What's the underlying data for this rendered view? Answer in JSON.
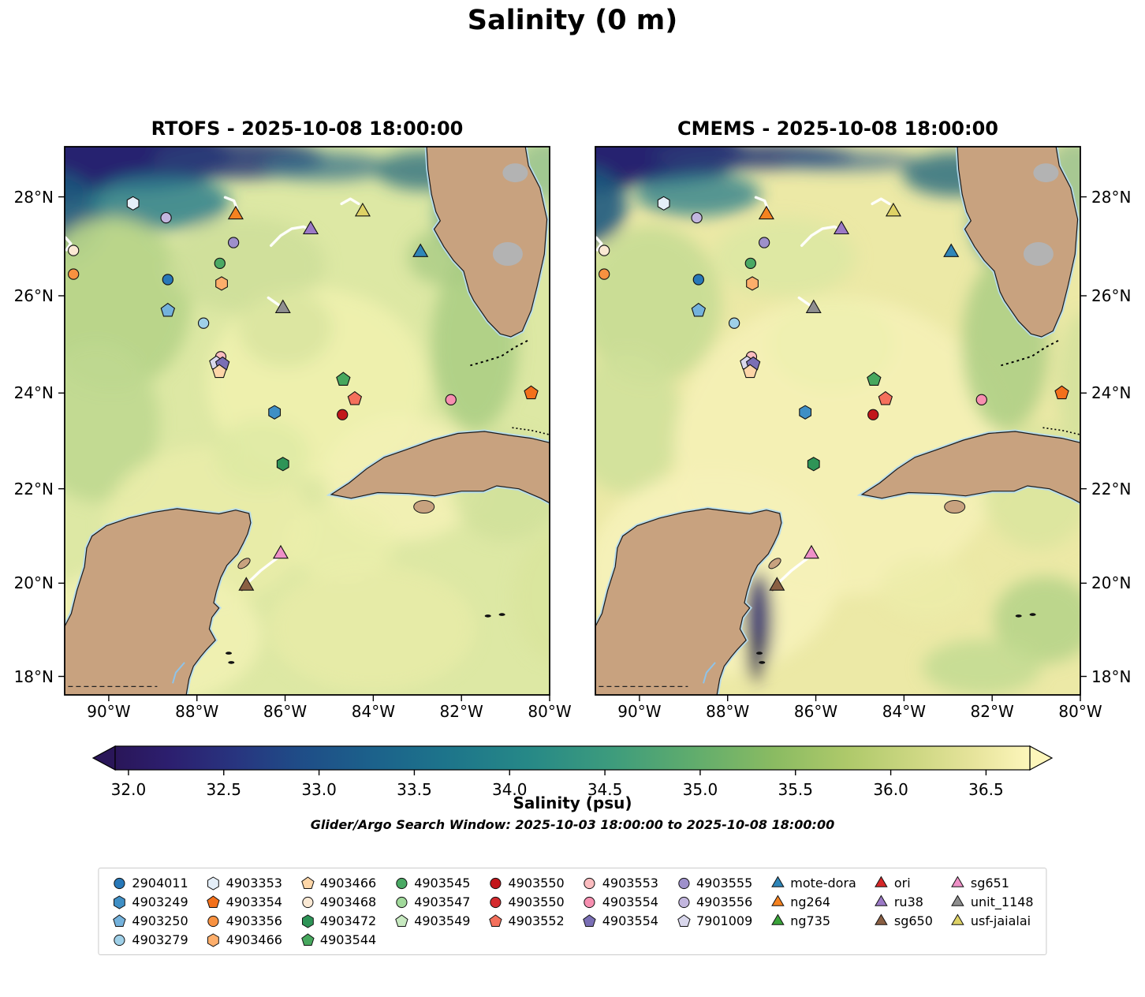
{
  "figure": {
    "title": "Salinity (0 m)",
    "subtitle": "Glider/Argo Search Window: 2025-10-03 18:00:00 to 2025-10-08 18:00:00"
  },
  "panels": [
    {
      "id": "rtofs",
      "title": "RTOFS - 2025-10-08 18:00:00",
      "ylabel_side": "left"
    },
    {
      "id": "cmems",
      "title": "CMEMS - 2025-10-08 18:00:00",
      "ylabel_side": "right"
    }
  ],
  "axes": {
    "lon_ticks": [
      {
        "value": -90,
        "label": "90°W"
      },
      {
        "value": -88,
        "label": "88°W"
      },
      {
        "value": -86,
        "label": "86°W"
      },
      {
        "value": -84,
        "label": "84°W"
      },
      {
        "value": -82,
        "label": "82°W"
      },
      {
        "value": -80,
        "label": "80°W"
      }
    ],
    "lat_ticks": [
      {
        "value": 28,
        "label": "28°N"
      },
      {
        "value": 26,
        "label": "26°N"
      },
      {
        "value": 24,
        "label": "24°N"
      },
      {
        "value": 22,
        "label": "22°N"
      },
      {
        "value": 20,
        "label": "20°N"
      },
      {
        "value": 18,
        "label": "18°N"
      }
    ]
  },
  "colorbar": {
    "label": "Salinity (psu)",
    "vmin": 31.93,
    "vmax": 36.73,
    "tick_values": [
      32.0,
      32.5,
      33.0,
      33.5,
      34.0,
      34.5,
      35.0,
      35.5,
      36.0,
      36.5
    ],
    "ticks": [
      "32.0",
      "32.5",
      "33.0",
      "33.5",
      "34.0",
      "34.5",
      "35.0",
      "35.5",
      "36.0",
      "36.5"
    ],
    "gradient": [
      [
        0.0,
        "#2a1659"
      ],
      [
        0.06,
        "#2c1f6f"
      ],
      [
        0.13,
        "#28347f"
      ],
      [
        0.2,
        "#1f4c87"
      ],
      [
        0.28,
        "#1c618b"
      ],
      [
        0.36,
        "#1d748b"
      ],
      [
        0.45,
        "#268887"
      ],
      [
        0.54,
        "#3c9b7d"
      ],
      [
        0.63,
        "#5fac6d"
      ],
      [
        0.72,
        "#8abb62"
      ],
      [
        0.8,
        "#aec96a"
      ],
      [
        0.88,
        "#cfd884"
      ],
      [
        0.94,
        "#e7e49c"
      ],
      [
        1.0,
        "#fdf6bb"
      ]
    ]
  },
  "chart_data": {
    "type": "heatmap",
    "title": "Salinity (0 m)",
    "variable": "Sea surface salinity (psu)",
    "panels": [
      "RTOFS - 2025-10-08 18:00:00",
      "CMEMS - 2025-10-08 18:00:00"
    ],
    "lon_range": [
      -91,
      -80
    ],
    "lat_range": [
      17.6,
      29.0
    ],
    "colorbar_range": [
      32.0,
      36.5
    ],
    "markers": [
      {
        "id": "4903353",
        "shape": "hexagon",
        "color": "#e4eef8",
        "lon": -89.45,
        "lat": 27.87
      },
      {
        "id": "4903556",
        "shape": "circle",
        "color": "#c2b6de",
        "lon": -88.7,
        "lat": 27.58
      },
      {
        "id": "ng264",
        "shape": "triangle",
        "color": "#f58220",
        "lon": -87.12,
        "lat": 27.64
      },
      {
        "id": "4903555",
        "shape": "circle",
        "color": "#9e90cb",
        "lon": -87.17,
        "lat": 27.08
      },
      {
        "id": "ru38",
        "shape": "triangle",
        "color": "#9b79c6",
        "lon": -85.42,
        "lat": 27.34
      },
      {
        "id": "usf-jaialai",
        "shape": "triangle",
        "color": "#ded266",
        "lon": -84.24,
        "lat": 27.7
      },
      {
        "id": "mote-dora",
        "shape": "triangle",
        "color": "#2f86b9",
        "lon": -82.93,
        "lat": 26.88
      },
      {
        "id": "4903468",
        "shape": "circle",
        "color": "#fbe9d4",
        "lon": -90.8,
        "lat": 26.92
      },
      {
        "id": "4903356",
        "shape": "circle",
        "color": "#f89140",
        "lon": -90.8,
        "lat": 26.44
      },
      {
        "id": "4903545",
        "shape": "circle",
        "color": "#4aa964",
        "lon": -87.48,
        "lat": 26.66
      },
      {
        "id": "2904011",
        "shape": "circle",
        "color": "#2878b8",
        "lon": -88.66,
        "lat": 26.33
      },
      {
        "id": "4903466",
        "shape": "hexagon",
        "color": "#fdae6b",
        "lon": -87.44,
        "lat": 26.25
      },
      {
        "id": "4903250",
        "shape": "pentagon",
        "color": "#74b2dc",
        "lon": -88.66,
        "lat": 25.7
      },
      {
        "id": "unit_1148",
        "shape": "triangle",
        "color": "#8f8f8f",
        "lon": -86.05,
        "lat": 25.74
      },
      {
        "id": "4903279",
        "shape": "circle",
        "color": "#9fd0e8",
        "lon": -87.85,
        "lat": 25.44
      },
      {
        "id": "4903553",
        "shape": "circle",
        "color": "#fbbcbf",
        "lon": -87.46,
        "lat": 24.75
      },
      {
        "id": "7901009",
        "shape": "pentagon",
        "color": "#d9d7ec",
        "lon": -87.56,
        "lat": 24.62
      },
      {
        "id": "4903554",
        "shape": "pentagon",
        "color": "#7a6fb5",
        "lon": -87.42,
        "lat": 24.6
      },
      {
        "id": "4903466",
        "shape": "pentagon",
        "color": "#fdd6a8",
        "lon": -87.49,
        "lat": 24.44
      },
      {
        "id": "4903544",
        "shape": "pentagon",
        "color": "#47a85e",
        "lon": -84.68,
        "lat": 24.28
      },
      {
        "id": "4903249",
        "shape": "hexagon",
        "color": "#3f8fc5",
        "lon": -86.24,
        "lat": 23.6
      },
      {
        "id": "4903552",
        "shape": "pentagon",
        "color": "#f4705c",
        "lon": -84.42,
        "lat": 23.88
      },
      {
        "id": "4903550",
        "shape": "circle",
        "color": "#c2161b",
        "lon": -84.7,
        "lat": 23.55
      },
      {
        "id": "4903554",
        "shape": "circle",
        "color": "#f78fb0",
        "lon": -82.24,
        "lat": 23.86
      },
      {
        "id": "4903354",
        "shape": "pentagon",
        "color": "#f3701b",
        "lon": -80.42,
        "lat": 24.0
      },
      {
        "id": "4903472",
        "shape": "hexagon",
        "color": "#2e9457",
        "lon": -86.05,
        "lat": 22.52
      },
      {
        "id": "sg651",
        "shape": "triangle",
        "color": "#ee90c7",
        "lon": -86.1,
        "lat": 20.62
      },
      {
        "id": "sg650",
        "shape": "triangle",
        "color": "#8a5f43",
        "lon": -86.88,
        "lat": 19.94
      }
    ],
    "tracks": [
      {
        "color": "#ffffff",
        "points": [
          [
            -90.98,
            27.18
          ],
          [
            -90.86,
            27.06
          ],
          [
            -90.96,
            26.93
          ]
        ]
      },
      {
        "color": "#ffffff",
        "points": [
          [
            -87.36,
            27.99
          ],
          [
            -87.16,
            27.92
          ],
          [
            -87.09,
            27.76
          ]
        ]
      },
      {
        "color": "#ffffff",
        "points": [
          [
            -86.32,
            27.02
          ],
          [
            -86.1,
            27.22
          ],
          [
            -85.85,
            27.36
          ],
          [
            -85.58,
            27.4
          ],
          [
            -85.44,
            27.34
          ]
        ]
      },
      {
        "color": "#ffffff",
        "points": [
          [
            -84.72,
            27.86
          ],
          [
            -84.52,
            27.96
          ],
          [
            -84.33,
            27.86
          ]
        ]
      },
      {
        "color": "#ffffff",
        "points": [
          [
            -86.38,
            25.96
          ],
          [
            -86.22,
            25.86
          ],
          [
            -86.09,
            25.78
          ]
        ]
      },
      {
        "color": "#ffffff",
        "points": [
          [
            -86.88,
            19.98
          ],
          [
            -86.72,
            20.12
          ],
          [
            -86.55,
            20.27
          ],
          [
            -86.34,
            20.42
          ],
          [
            -86.14,
            20.56
          ]
        ]
      },
      {
        "color": "#8a5f43",
        "points": [
          [
            -86.98,
            19.86
          ],
          [
            -86.88,
            19.97
          ]
        ]
      }
    ]
  },
  "legend": {
    "columns": [
      [
        {
          "label": "2904011",
          "shape": "circle",
          "color": "#2878b8"
        },
        {
          "label": "4903249",
          "shape": "hexagon",
          "color": "#3f8fc5"
        },
        {
          "label": "4903250",
          "shape": "pentagon",
          "color": "#74b2dc"
        },
        {
          "label": "4903279",
          "shape": "circle",
          "color": "#9fd0e8"
        }
      ],
      [
        {
          "label": "4903353",
          "shape": "hexagon",
          "color": "#e4eef8"
        },
        {
          "label": "4903354",
          "shape": "pentagon",
          "color": "#f3701b"
        },
        {
          "label": "4903356",
          "shape": "circle",
          "color": "#f89140"
        },
        {
          "label": "4903466",
          "shape": "hexagon",
          "color": "#fdae6b"
        }
      ],
      [
        {
          "label": "4903466",
          "shape": "pentagon",
          "color": "#fdd6a8"
        },
        {
          "label": "4903468",
          "shape": "circle",
          "color": "#fbe9d4"
        },
        {
          "label": "4903472",
          "shape": "hexagon",
          "color": "#2e9457"
        },
        {
          "label": "4903544",
          "shape": "pentagon",
          "color": "#47a85e"
        }
      ],
      [
        {
          "label": "4903545",
          "shape": "circle",
          "color": "#4aa964"
        },
        {
          "label": "4903547",
          "shape": "circle",
          "color": "#a1d99b"
        },
        {
          "label": "4903549",
          "shape": "pentagon",
          "color": "#c7e9c0"
        }
      ],
      [
        {
          "label": "4903550",
          "shape": "circle",
          "color": "#c2161b"
        },
        {
          "label": "4903550",
          "shape": "circle",
          "color": "#d42a2e"
        },
        {
          "label": "4903552",
          "shape": "pentagon",
          "color": "#f4705c"
        }
      ],
      [
        {
          "label": "4903553",
          "shape": "circle",
          "color": "#fbbcbf"
        },
        {
          "label": "4903554",
          "shape": "circle",
          "color": "#f78fb0"
        },
        {
          "label": "4903554",
          "shape": "pentagon",
          "color": "#7a6fb5"
        }
      ],
      [
        {
          "label": "4903555",
          "shape": "circle",
          "color": "#9e90cb"
        },
        {
          "label": "4903556",
          "shape": "circle",
          "color": "#c2b6de"
        },
        {
          "label": "7901009",
          "shape": "pentagon",
          "color": "#d9d7ec"
        }
      ],
      [
        {
          "label": "mote-dora",
          "shape": "triangle",
          "color": "#2f86b9"
        },
        {
          "label": "ng264",
          "shape": "triangle",
          "color": "#f58220"
        },
        {
          "label": "ng735",
          "shape": "triangle",
          "color": "#3aa33a"
        }
      ],
      [
        {
          "label": "ori",
          "shape": "triangle",
          "color": "#d62728"
        },
        {
          "label": "ru38",
          "shape": "triangle",
          "color": "#9b79c6"
        },
        {
          "label": "sg650",
          "shape": "triangle",
          "color": "#8a5f43"
        }
      ],
      [
        {
          "label": "sg651",
          "shape": "triangle",
          "color": "#ee90c7"
        },
        {
          "label": "unit_1148",
          "shape": "triangle",
          "color": "#8f8f8f"
        },
        {
          "label": "usf-jaialai",
          "shape": "triangle",
          "color": "#ded266"
        }
      ]
    ]
  }
}
